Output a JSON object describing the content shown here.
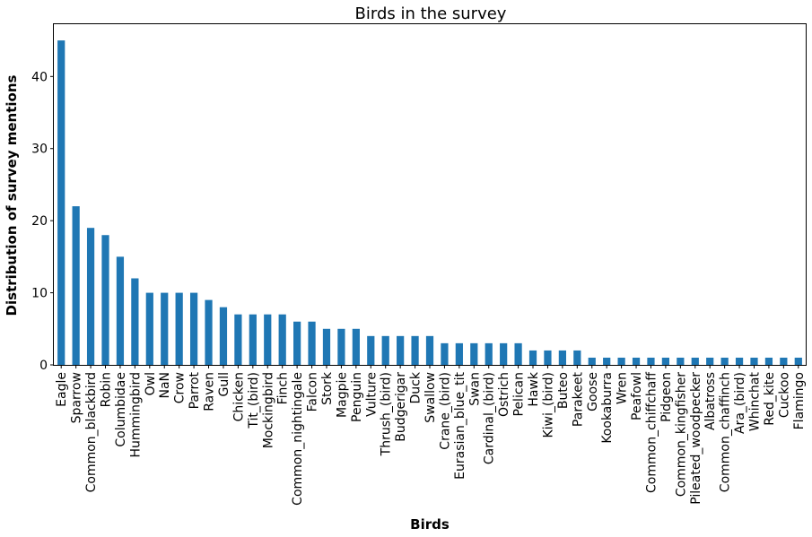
{
  "chart_data": {
    "type": "bar",
    "title": "Birds in the survey",
    "xlabel": "Birds",
    "ylabel": "Distribution of survey mentions",
    "ylim": [
      0,
      47.25
    ],
    "yticks": [
      0,
      10,
      20,
      30,
      40
    ],
    "bar_color": "#1f77b4",
    "grid": false,
    "categories": [
      "Eagle",
      "Sparrow",
      "Common_blackbird",
      "Robin",
      "Columbidae",
      "Hummingbird",
      "Owl",
      "NaN",
      "Crow",
      "Parrot",
      "Raven",
      "Gull",
      "Chicken",
      "Tit_(bird)",
      "Mockingbird",
      "Finch",
      "Common_nightingale",
      "Falcon",
      "Stork",
      "Magpie",
      "Penguin",
      "Vulture",
      "Thrush_(bird)",
      "Budgerigar",
      "Duck",
      "Swallow",
      "Crane_(bird)",
      "Eurasian_blue_tit",
      "Swan",
      "Cardinal_(bird)",
      "Ostrich",
      "Pelican",
      "Hawk",
      "Kiwi_(bird)",
      "Buteo",
      "Parakeet",
      "Goose",
      "Kookaburra",
      "Wren",
      "Peafowl",
      "Common_chiffchaff",
      "Pidgeon",
      "Common_kingfisher",
      "Pileated_woodpecker",
      "Albatross",
      "Common_chaffinch",
      "Ara_(bird)",
      "Whinchat",
      "Red_kite",
      "Cuckoo",
      "Flamingo"
    ],
    "values": [
      45,
      22,
      19,
      18,
      15,
      12,
      10,
      10,
      10,
      10,
      9,
      8,
      7,
      7,
      7,
      7,
      6,
      6,
      5,
      5,
      5,
      4,
      4,
      4,
      4,
      4,
      3,
      3,
      3,
      3,
      3,
      3,
      2,
      2,
      2,
      2,
      1,
      1,
      1,
      1,
      1,
      1,
      1,
      1,
      1,
      1,
      1,
      1,
      1,
      1,
      1
    ]
  }
}
